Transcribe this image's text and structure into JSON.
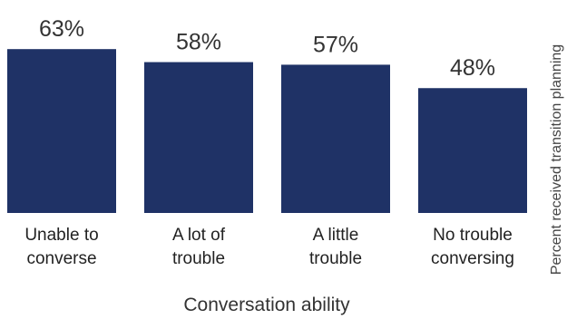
{
  "chart_data": {
    "type": "bar",
    "categories": [
      [
        "Unable to",
        "converse"
      ],
      [
        "A lot of",
        "trouble"
      ],
      [
        "A little",
        "trouble"
      ],
      [
        "No trouble",
        "conversing"
      ]
    ],
    "values": [
      63,
      58,
      57,
      48
    ],
    "value_labels": [
      "63%",
      "58%",
      "57%",
      "48%"
    ],
    "title": "",
    "xlabel": "Conversation ability",
    "ylabel": "Percent received transition planning",
    "bar_color": "#1f3266",
    "grid": false,
    "legend": "none"
  }
}
